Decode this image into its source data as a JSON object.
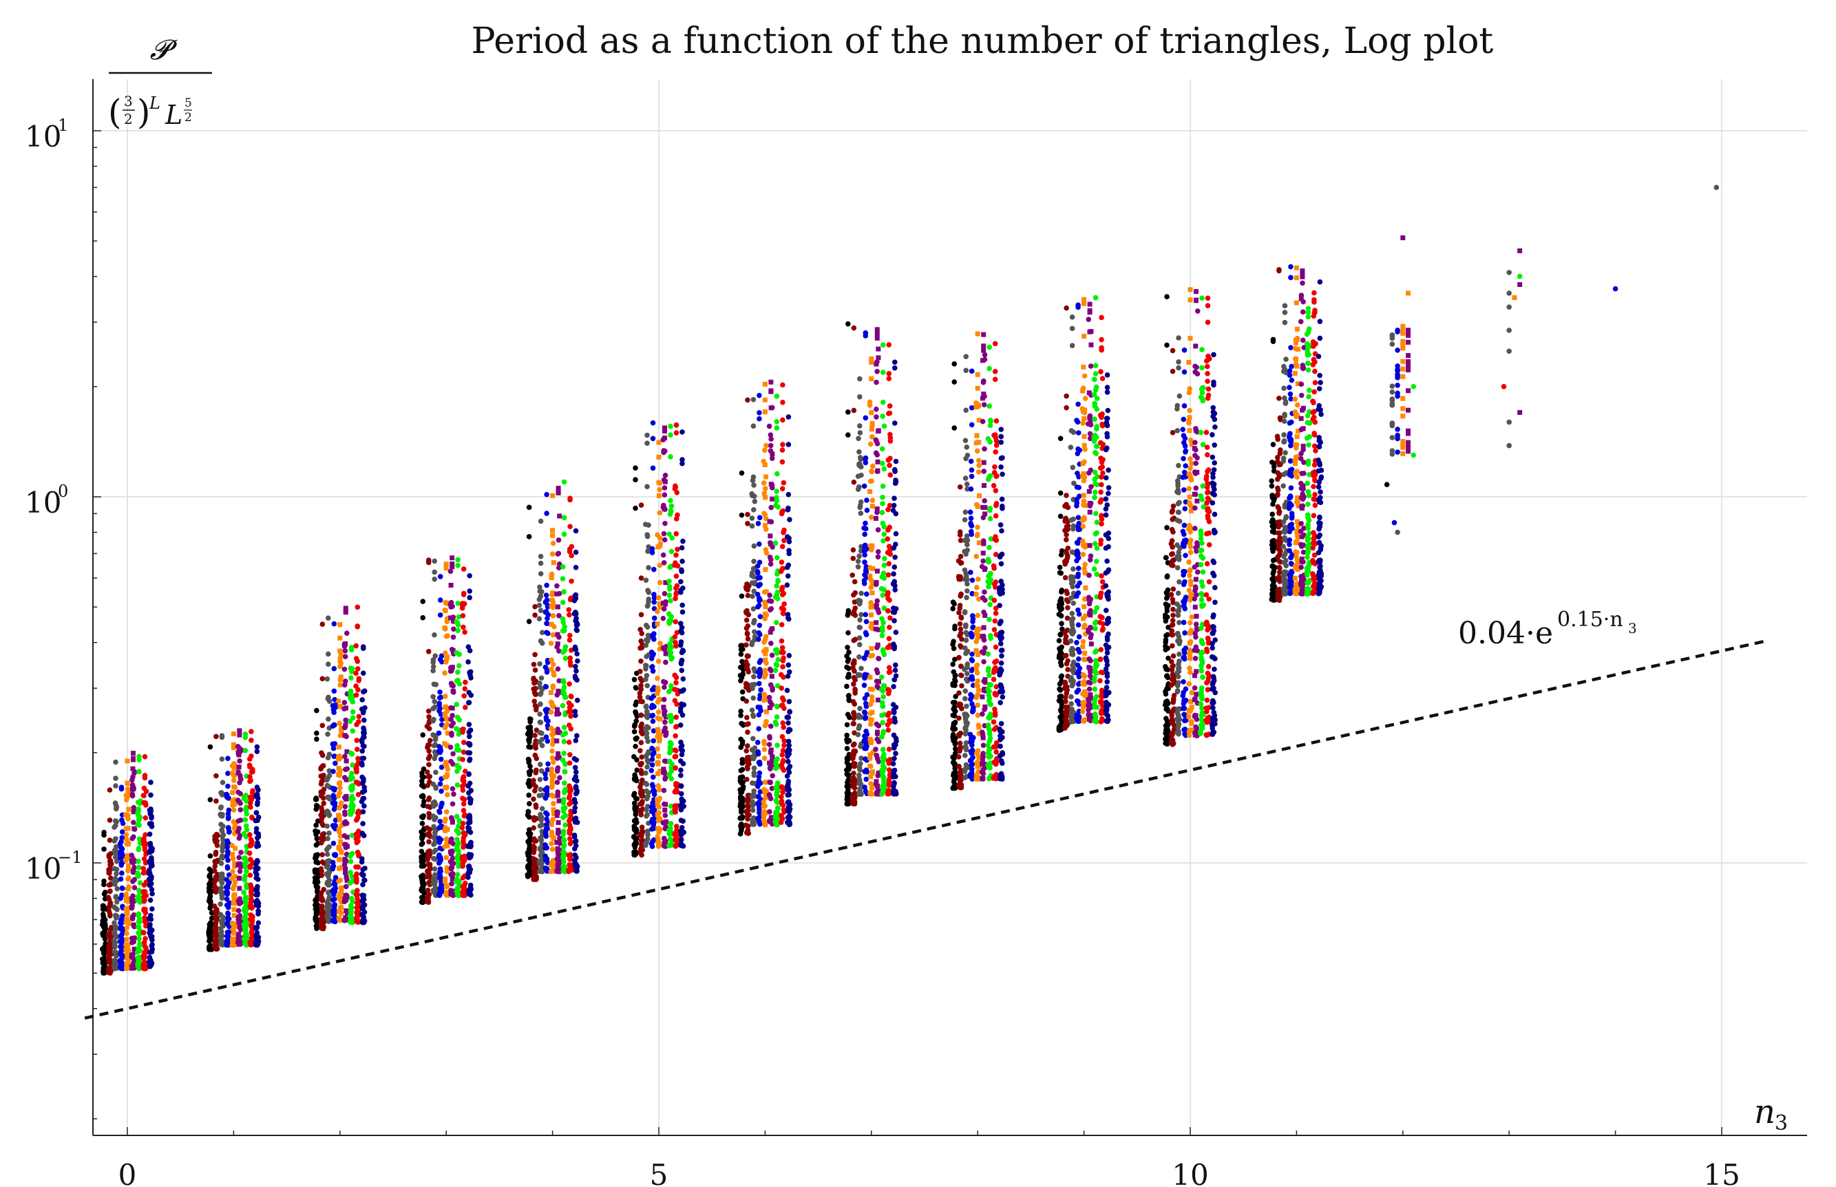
{
  "chart_data": {
    "type": "scatter",
    "title": "Period as a function of the number of triangles, Log plot",
    "xlabel": "n",
    "xlabel_sub": "3",
    "ylabel": "𝓟 / (3/2)^L L^(5/2)",
    "ylabel_parts": {
      "numerator": "𝓟",
      "frac_num": "3",
      "frac_den": "2",
      "exp_L": "L",
      "base_L": "L",
      "exp_num": "5",
      "exp_den": "2"
    },
    "x_ticks": [
      "0",
      "5",
      "10",
      "15"
    ],
    "y_ticks": [
      {
        "base": "10",
        "exp": "1"
      },
      {
        "base": "10",
        "exp": "0"
      },
      {
        "base": "10",
        "exp": "−1"
      }
    ],
    "xlim": [
      -0.3,
      15.8
    ],
    "ylim": [
      0.018,
      14
    ],
    "yscale": "log",
    "grid": true,
    "series_colors": [
      "#000000",
      "#8b0000",
      "#555555",
      "#0000dd",
      "#ff8800",
      "#800080",
      "#00ee00",
      "#ee0000",
      "#00008b"
    ],
    "clusters": [
      {
        "n3": 0,
        "min": 0.05,
        "max": 0.2
      },
      {
        "n3": 1,
        "min": 0.058,
        "max": 0.23
      },
      {
        "n3": 2,
        "min": 0.066,
        "max": 0.5
      },
      {
        "n3": 3,
        "min": 0.078,
        "max": 0.7
      },
      {
        "n3": 4,
        "min": 0.09,
        "max": 1.1
      },
      {
        "n3": 5,
        "min": 0.105,
        "max": 1.6
      },
      {
        "n3": 6,
        "min": 0.12,
        "max": 2.1
      },
      {
        "n3": 7,
        "min": 0.145,
        "max": 3.0
      },
      {
        "n3": 8,
        "min": 0.16,
        "max": 2.8
      },
      {
        "n3": 9,
        "min": 0.23,
        "max": 3.5
      },
      {
        "n3": 10,
        "min": 0.21,
        "max": 3.7
      },
      {
        "n3": 11,
        "min": 0.52,
        "max": 4.3
      },
      {
        "n3": 12,
        "min": 0.8,
        "max": 5.2
      },
      {
        "n3": 13,
        "min": 1.38,
        "max": 4.7
      },
      {
        "n3": 14,
        "min": 3.7,
        "max": 3.7
      },
      {
        "n3": 15,
        "min": 7.0,
        "max": 7.0
      }
    ],
    "sparse_points": [
      {
        "x": 11.85,
        "y": 1.08,
        "c": "#000000"
      },
      {
        "x": 11.92,
        "y": 0.85,
        "c": "#0000dd"
      },
      {
        "x": 11.95,
        "y": 0.8,
        "c": "#555555"
      },
      {
        "x": 12.0,
        "y": 5.1,
        "c": "#800080"
      },
      {
        "x": 12.05,
        "y": 3.6,
        "c": "#ff8800"
      },
      {
        "x": 12.1,
        "y": 2.0,
        "c": "#00ee00"
      },
      {
        "x": 12.1,
        "y": 1.3,
        "c": "#00ee00"
      },
      {
        "x": 12.95,
        "y": 2.0,
        "c": "#ee0000"
      },
      {
        "x": 13.0,
        "y": 4.1,
        "c": "#555555"
      },
      {
        "x": 13.0,
        "y": 3.6,
        "c": "#555555"
      },
      {
        "x": 13.0,
        "y": 3.3,
        "c": "#555555"
      },
      {
        "x": 13.0,
        "y": 2.85,
        "c": "#555555"
      },
      {
        "x": 13.0,
        "y": 2.5,
        "c": "#555555"
      },
      {
        "x": 13.0,
        "y": 1.6,
        "c": "#555555"
      },
      {
        "x": 13.0,
        "y": 1.38,
        "c": "#555555"
      },
      {
        "x": 13.05,
        "y": 3.5,
        "c": "#ff8800"
      },
      {
        "x": 13.1,
        "y": 4.7,
        "c": "#800080"
      },
      {
        "x": 13.1,
        "y": 3.8,
        "c": "#800080"
      },
      {
        "x": 13.1,
        "y": 1.7,
        "c": "#800080"
      },
      {
        "x": 13.1,
        "y": 4.0,
        "c": "#00ee00"
      },
      {
        "x": 14.0,
        "y": 3.7,
        "c": "#0000dd"
      },
      {
        "x": 14.95,
        "y": 7.0,
        "c": "#555555"
      }
    ],
    "fit_line": {
      "coef": 0.04,
      "rate": 0.15,
      "x_range": [
        -0.4,
        15.4
      ],
      "style": "dashed",
      "label_base": "0.04·e",
      "label_exp": "0.15·n",
      "label_sub": "3"
    }
  }
}
